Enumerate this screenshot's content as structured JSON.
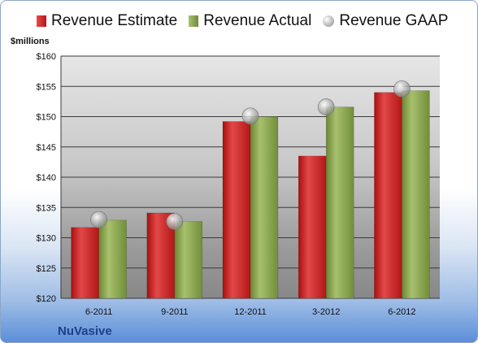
{
  "legend": {
    "estimate": "Revenue Estimate",
    "actual": "Revenue Actual",
    "gaap": "Revenue GAAP"
  },
  "unit_label": "$millions",
  "company": "NuVasive",
  "colors": {
    "estimate": "#c81e1e",
    "actual": "#8aa64c",
    "gaap": "#b5b5b5",
    "company_text": "#1f3f87"
  },
  "chart_data": {
    "type": "bar",
    "categories": [
      "6-2011",
      "9-2011",
      "12-2011",
      "3-2012",
      "6-2012"
    ],
    "series": [
      {
        "name": "Revenue Estimate",
        "values": [
          131.7,
          134.1,
          149.2,
          143.5,
          154.0
        ]
      },
      {
        "name": "Revenue Actual",
        "values": [
          132.9,
          132.7,
          150.0,
          151.6,
          154.3
        ]
      },
      {
        "name": "Revenue GAAP",
        "values": [
          133.0,
          132.7,
          150.1,
          151.6,
          154.6
        ]
      }
    ],
    "ylabel": "$millions",
    "ylim": [
      120,
      160
    ],
    "yticks": [
      "$120",
      "$125",
      "$130",
      "$135",
      "$140",
      "$145",
      "$150",
      "$155",
      "$160"
    ],
    "grid": true,
    "legend_position": "top"
  }
}
